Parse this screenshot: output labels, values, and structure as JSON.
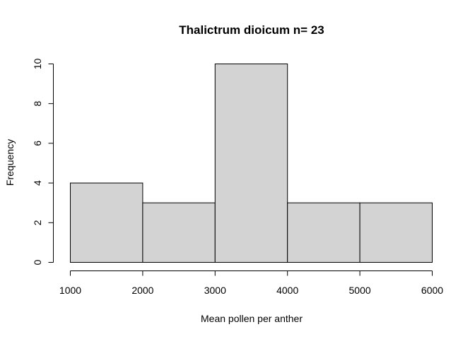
{
  "chart_data": {
    "type": "bar",
    "title": "Thalictrum dioicum n= 23",
    "xlabel": "Mean pollen per anther",
    "ylabel": "Frequency",
    "bins": [
      {
        "start": 1000,
        "end": 2000,
        "count": 4
      },
      {
        "start": 2000,
        "end": 3000,
        "count": 3
      },
      {
        "start": 3000,
        "end": 4000,
        "count": 10
      },
      {
        "start": 4000,
        "end": 5000,
        "count": 3
      },
      {
        "start": 5000,
        "end": 6000,
        "count": 3
      }
    ],
    "xticks": [
      1000,
      2000,
      3000,
      4000,
      5000,
      6000
    ],
    "yticks": [
      0,
      2,
      4,
      6,
      8,
      10
    ],
    "xlim": [
      1000,
      6000
    ],
    "ylim": [
      0,
      10
    ],
    "bar_color": "#d3d3d3",
    "grid": false
  }
}
